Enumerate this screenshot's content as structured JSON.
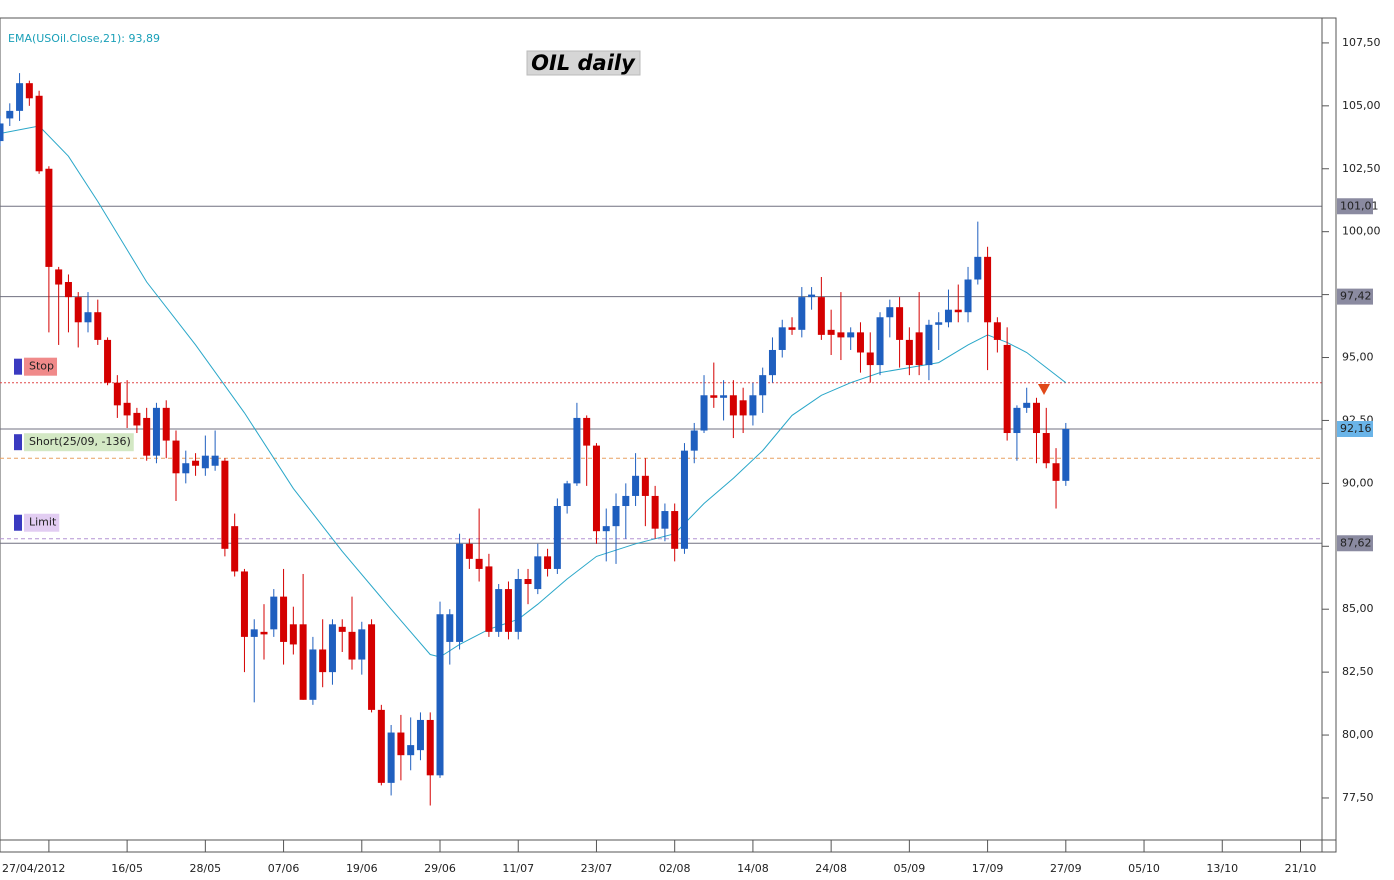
{
  "chart_data": {
    "type": "candlestick",
    "title": "OIL daily",
    "up_color": "#1f5fbf",
    "down_color": "#d40000",
    "x": [
      -5,
      -4,
      -3,
      -2,
      -1,
      0,
      1,
      2,
      3,
      4,
      5,
      6,
      7,
      8,
      9,
      10,
      11,
      12,
      13,
      14,
      15,
      16,
      17,
      18,
      19,
      20,
      21,
      22,
      23,
      24,
      25,
      26,
      27,
      28,
      29,
      30,
      31,
      32,
      33,
      34,
      35,
      36,
      37,
      38,
      39,
      40,
      41,
      42,
      43,
      44,
      45,
      46,
      47,
      48,
      49,
      50,
      51,
      52,
      53,
      54,
      55,
      56,
      57,
      58,
      59,
      60,
      61,
      62,
      63,
      64,
      65,
      66,
      67,
      68,
      69,
      70,
      71,
      72,
      73,
      74,
      75,
      76,
      77,
      78,
      79,
      80,
      81,
      82,
      83,
      84,
      85,
      86,
      87,
      88,
      89,
      90,
      91,
      92,
      93,
      94,
      95,
      96,
      97,
      98,
      99,
      100,
      101,
      102,
      103,
      104
    ],
    "open": [
      103.6,
      104.5,
      104.8,
      105.9,
      105.4,
      102.5,
      98.5,
      98.0,
      97.4,
      96.4,
      96.8,
      95.7,
      94.0,
      93.2,
      92.8,
      92.6,
      91.1,
      93.0,
      91.7,
      90.4,
      90.9,
      90.6,
      90.7,
      90.9,
      88.3,
      86.5,
      83.9,
      84.1,
      84.2,
      85.5,
      84.4,
      84.4,
      81.4,
      83.4,
      82.5,
      84.3,
      84.1,
      83.0,
      84.4,
      81.0,
      78.1,
      80.1,
      79.2,
      79.4,
      80.6,
      78.4,
      83.7,
      83.7,
      87.6,
      87.0,
      86.7,
      84.1,
      85.8,
      84.1,
      86.2,
      85.8,
      87.1,
      86.6,
      89.1,
      90.0,
      92.6,
      91.5,
      88.1,
      88.3,
      89.1,
      89.5,
      90.3,
      89.5,
      88.2,
      88.9,
      87.4,
      91.3,
      92.1,
      93.5,
      93.4,
      93.5,
      93.3,
      92.7,
      93.5,
      94.3,
      95.3,
      96.2,
      96.1,
      97.4,
      97.4,
      96.1,
      96.0,
      95.8,
      96.0,
      95.2,
      94.7,
      96.6,
      97.0,
      95.7,
      96.0,
      94.7,
      96.3,
      96.4,
      96.9,
      96.8,
      98.1,
      99.0,
      96.4,
      95.5,
      92.0,
      93.0,
      93.2,
      92.0,
      90.8,
      90.1
    ],
    "high": [
      104.6,
      105.1,
      106.3,
      106.0,
      105.6,
      102.6,
      98.6,
      98.3,
      97.6,
      97.6,
      97.3,
      95.8,
      94.3,
      94.1,
      93.0,
      93.0,
      93.2,
      93.3,
      92.1,
      91.3,
      91.2,
      91.9,
      92.1,
      91.0,
      88.8,
      86.6,
      84.6,
      85.2,
      85.8,
      86.6,
      85.1,
      86.4,
      83.9,
      84.6,
      84.6,
      84.6,
      85.5,
      84.5,
      84.6,
      81.2,
      80.4,
      80.8,
      80.7,
      80.9,
      80.9,
      85.3,
      85.0,
      88.0,
      87.8,
      89.0,
      87.2,
      86.0,
      86.1,
      86.6,
      86.6,
      87.6,
      87.4,
      89.4,
      90.1,
      93.2,
      92.7,
      91.6,
      89.0,
      89.6,
      90.0,
      91.2,
      91.0,
      89.9,
      89.2,
      89.2,
      91.6,
      92.4,
      94.3,
      94.8,
      94.1,
      94.1,
      93.8,
      94.0,
      94.6,
      95.8,
      96.5,
      96.6,
      97.8,
      97.8,
      98.2,
      96.9,
      97.6,
      96.2,
      96.4,
      96.0,
      96.8,
      97.3,
      97.4,
      96.2,
      97.6,
      96.5,
      96.8,
      97.7,
      97.9,
      98.6,
      100.4,
      99.4,
      96.6,
      96.2,
      93.1,
      93.8,
      93.4,
      93.0,
      91.4,
      92.4
    ],
    "low": [
      103.4,
      104.2,
      104.4,
      105.0,
      102.3,
      96.0,
      95.5,
      96.0,
      95.4,
      96.0,
      95.5,
      93.9,
      92.6,
      92.2,
      92.0,
      90.9,
      90.8,
      91.0,
      89.3,
      90.0,
      90.3,
      90.3,
      90.5,
      87.1,
      86.3,
      82.5,
      81.3,
      83.0,
      83.9,
      82.8,
      83.2,
      81.4,
      81.2,
      81.9,
      82.0,
      83.3,
      82.6,
      82.4,
      80.9,
      78.0,
      77.6,
      78.2,
      78.6,
      79.0,
      77.2,
      78.3,
      82.8,
      83.4,
      86.6,
      86.1,
      83.9,
      83.9,
      83.8,
      83.8,
      85.2,
      85.6,
      86.3,
      86.4,
      88.8,
      89.9,
      89.9,
      87.6,
      86.9,
      86.8,
      87.8,
      89.1,
      88.3,
      87.8,
      87.7,
      86.9,
      87.2,
      90.8,
      92.0,
      93.0,
      92.5,
      91.8,
      92.0,
      92.3,
      92.8,
      94.0,
      95.0,
      95.9,
      95.8,
      96.9,
      95.7,
      95.1,
      94.9,
      95.3,
      94.4,
      94.0,
      94.3,
      95.8,
      94.6,
      94.3,
      94.3,
      94.1,
      95.3,
      96.2,
      96.4,
      96.4,
      97.9,
      94.5,
      95.2,
      91.7,
      90.9,
      92.8,
      90.8,
      90.6,
      89.0,
      89.9
    ],
    "close": [
      104.3,
      104.8,
      105.9,
      105.3,
      102.4,
      98.6,
      97.9,
      97.4,
      96.4,
      96.8,
      95.7,
      94.0,
      93.1,
      92.7,
      92.3,
      91.1,
      93.0,
      91.7,
      90.4,
      90.8,
      90.7,
      91.1,
      91.1,
      87.4,
      86.5,
      83.9,
      84.2,
      84.0,
      85.5,
      83.7,
      83.6,
      81.4,
      83.4,
      82.5,
      84.4,
      84.1,
      83.0,
      84.2,
      81.0,
      78.1,
      80.1,
      79.2,
      79.6,
      80.6,
      78.4,
      84.8,
      84.8,
      87.6,
      87.0,
      86.6,
      84.1,
      85.8,
      84.1,
      86.2,
      86.0,
      87.1,
      86.6,
      89.1,
      90.0,
      92.6,
      91.5,
      88.1,
      88.3,
      89.1,
      89.5,
      90.3,
      89.5,
      88.2,
      88.9,
      87.4,
      91.3,
      92.1,
      93.5,
      93.4,
      93.5,
      92.7,
      92.7,
      93.5,
      94.3,
      95.3,
      96.2,
      96.1,
      97.4,
      97.5,
      95.9,
      95.9,
      95.8,
      96.0,
      95.2,
      94.7,
      96.6,
      97.0,
      95.7,
      94.7,
      94.7,
      96.3,
      96.4,
      96.9,
      96.8,
      98.1,
      99.0,
      96.4,
      95.7,
      92.0,
      93.0,
      93.2,
      92.0,
      90.8,
      90.1,
      92.16
    ],
    "indicator": {
      "name": "EMA(USOil.Close,21): 93,89",
      "color": "#2aa7c9",
      "x": [
        -5,
        -1,
        2,
        5,
        10,
        15,
        20,
        25,
        30,
        35,
        39,
        40,
        42,
        45,
        48,
        50,
        53,
        56,
        60,
        64,
        67,
        70,
        73,
        76,
        79,
        82,
        85,
        88,
        91,
        94,
        96,
        98,
        100,
        102,
        104
      ],
      "values": [
        103.9,
        104.2,
        103.0,
        101.2,
        98.0,
        95.5,
        92.8,
        89.8,
        87.3,
        85.0,
        83.2,
        83.1,
        83.6,
        84.2,
        84.6,
        85.2,
        86.2,
        87.1,
        87.6,
        88.0,
        89.2,
        90.2,
        91.3,
        92.7,
        93.5,
        94.0,
        94.4,
        94.6,
        94.8,
        95.5,
        95.9,
        95.6,
        95.2,
        94.6,
        94.0
      ]
    },
    "levels": [
      {
        "value": 101.01,
        "label": "101,01",
        "color": "#8a8aa0"
      },
      {
        "value": 97.42,
        "label": "97,42",
        "color": "#8a8aa0"
      },
      {
        "value": 87.62,
        "label": "87,62",
        "color": "#8a8aa0"
      },
      {
        "value": 92.16,
        "label": "92,16",
        "color": "#6ab4e8"
      }
    ],
    "orders": [
      {
        "name": "Stop",
        "value": 94.0,
        "color": "#e04848",
        "fill": "#f08a8a"
      },
      {
        "name": "Short(25/09, -136)",
        "value": 91.0,
        "color": "#e8a060",
        "fill": "#d3e8c4"
      },
      {
        "name": "Limit",
        "value": 87.8,
        "color": "#b494d4",
        "fill": "#e2cdf2"
      }
    ],
    "xlim": [
      -5,
      130.2
    ],
    "xticks": [
      {
        "value": 0,
        "label": "27/04/2012"
      },
      {
        "value": 8,
        "label": "16/05"
      },
      {
        "value": 16,
        "label": "28/05"
      },
      {
        "value": 24,
        "label": "07/06"
      },
      {
        "value": 32,
        "label": "19/06"
      },
      {
        "value": 40,
        "label": "29/06"
      },
      {
        "value": 48,
        "label": "11/07"
      },
      {
        "value": 56,
        "label": "23/07"
      },
      {
        "value": 64,
        "label": "02/08"
      },
      {
        "value": 72,
        "label": "14/08"
      },
      {
        "value": 80,
        "label": "24/08"
      },
      {
        "value": 88,
        "label": "05/09"
      },
      {
        "value": 96,
        "label": "17/09"
      },
      {
        "value": 104,
        "label": "27/09"
      },
      {
        "value": 112,
        "label": "05/10"
      },
      {
        "value": 120,
        "label": "13/10"
      },
      {
        "value": 128,
        "label": "21/10"
      }
    ],
    "ylim": [
      75.83,
      108.49
    ],
    "yticks": [
      {
        "value": 77.5,
        "label": "77,50"
      },
      {
        "value": 80,
        "label": "80,00"
      },
      {
        "value": 82.5,
        "label": "82,50"
      },
      {
        "value": 85,
        "label": "85,00"
      },
      {
        "value": 87.5,
        "label": "87,50"
      },
      {
        "value": 90,
        "label": "90,00"
      },
      {
        "value": 92.5,
        "label": "92,50"
      },
      {
        "value": 95,
        "label": "95,00"
      },
      {
        "value": 97.5,
        "label": "97,50"
      },
      {
        "value": 100,
        "label": "100,00"
      },
      {
        "value": 102.5,
        "label": "102,50"
      },
      {
        "value": 105,
        "label": "105,00"
      },
      {
        "value": 107.5,
        "label": "107,50"
      }
    ]
  }
}
